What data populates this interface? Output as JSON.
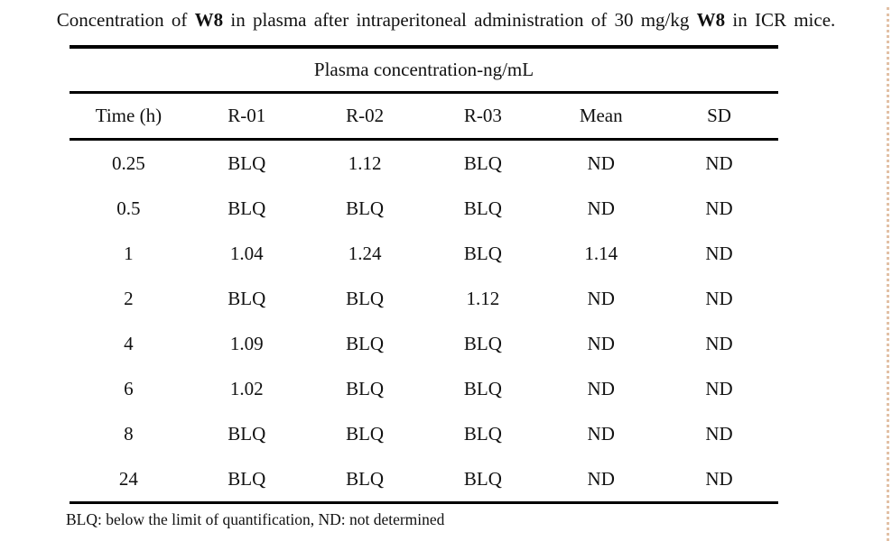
{
  "title": {
    "segments": [
      {
        "text": "Concentration of ",
        "bold": false
      },
      {
        "text": "W8",
        "bold": true
      },
      {
        "text": " in plasma after intraperitoneal administration of 30 mg/kg ",
        "bold": false
      },
      {
        "text": "W8",
        "bold": true
      },
      {
        "text": " in ICR mice.",
        "bold": false
      }
    ]
  },
  "table": {
    "group_header": "Plasma concentration-ng/mL",
    "columns": [
      "Time (h)",
      "R-01",
      "R-02",
      "R-03",
      "Mean",
      "SD"
    ],
    "rows": [
      [
        "0.25",
        "BLQ",
        "1.12",
        "BLQ",
        "ND",
        "ND"
      ],
      [
        "0.5",
        "BLQ",
        "BLQ",
        "BLQ",
        "ND",
        "ND"
      ],
      [
        "1",
        "1.04",
        "1.24",
        "BLQ",
        "1.14",
        "ND"
      ],
      [
        "2",
        "BLQ",
        "BLQ",
        "1.12",
        "ND",
        "ND"
      ],
      [
        "4",
        "1.09",
        "BLQ",
        "BLQ",
        "ND",
        "ND"
      ],
      [
        "6",
        "1.02",
        "BLQ",
        "BLQ",
        "ND",
        "ND"
      ],
      [
        "8",
        "BLQ",
        "BLQ",
        "BLQ",
        "ND",
        "ND"
      ],
      [
        "24",
        "BLQ",
        "BLQ",
        "BLQ",
        "ND",
        "ND"
      ]
    ]
  },
  "footnote": "BLQ: below the limit of quantification, ND: not determined",
  "colors": {
    "text": "#111111",
    "background": "#ffffff",
    "rule": "#000000",
    "edge_dotted": "#d9ab87"
  }
}
